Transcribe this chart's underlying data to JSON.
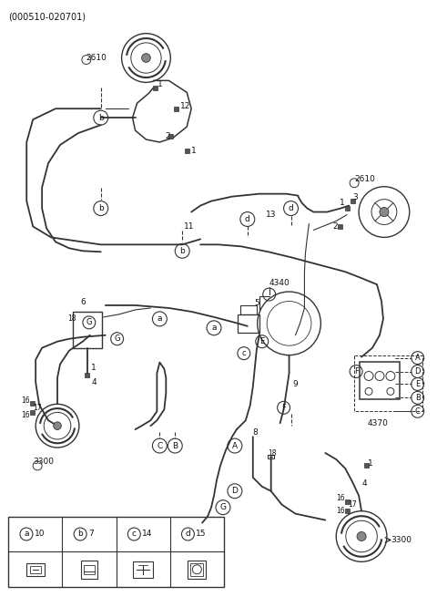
{
  "title": "(000510-020701)",
  "bg_color": "#ffffff",
  "lc": "#333333",
  "tc": "#111111",
  "fig_w": 4.8,
  "fig_h": 6.55,
  "dpi": 100,
  "legend": [
    {
      "sym": "a",
      "num": "10"
    },
    {
      "sym": "b",
      "num": "7"
    },
    {
      "sym": "c",
      "num": "14"
    },
    {
      "sym": "d",
      "num": "15"
    }
  ]
}
